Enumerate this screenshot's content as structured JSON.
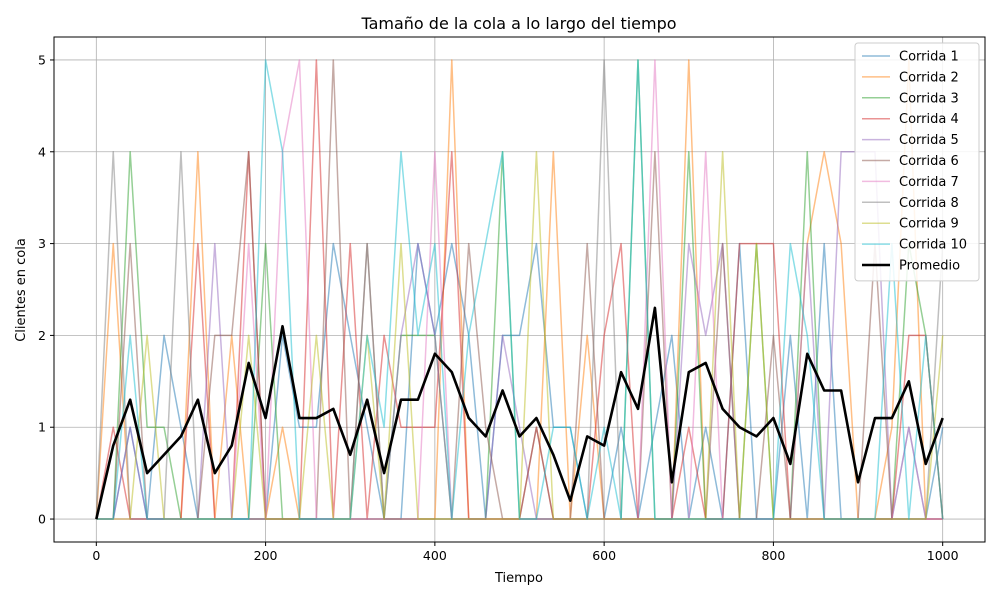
{
  "chart_data": {
    "type": "line",
    "title": "Tamaño de la cola a lo largo del tiempo",
    "xlabel": "Tiempo",
    "ylabel": "Clientes en cola",
    "xlim": [
      -50,
      1050
    ],
    "ylim": [
      -0.25,
      5.25
    ],
    "xticks": [
      0,
      200,
      400,
      600,
      800,
      1000
    ],
    "yticks": [
      0,
      1,
      2,
      3,
      4,
      5
    ],
    "grid": true,
    "legend_position": "top-right",
    "x": [
      0,
      20,
      40,
      60,
      80,
      100,
      120,
      140,
      160,
      180,
      200,
      220,
      240,
      260,
      280,
      300,
      320,
      340,
      360,
      380,
      400,
      420,
      440,
      460,
      480,
      500,
      520,
      540,
      560,
      580,
      600,
      620,
      640,
      660,
      680,
      700,
      720,
      740,
      760,
      780,
      800,
      820,
      840,
      860,
      880,
      900,
      920,
      940,
      960,
      980,
      1000
    ],
    "series": [
      {
        "name": "Corrida 1",
        "color": "#1f77b4",
        "values": [
          0,
          0,
          1,
          0,
          2,
          1,
          0,
          0,
          0,
          0,
          0,
          2,
          1,
          1,
          3,
          2,
          1,
          0,
          0,
          3,
          2,
          3,
          2,
          0,
          2,
          2,
          3,
          1,
          1,
          0,
          0,
          1,
          0,
          1,
          2,
          0,
          1,
          0,
          3,
          0,
          0,
          2,
          0,
          3,
          0,
          0,
          0,
          0,
          1,
          0,
          1
        ]
      },
      {
        "name": "Corrida 2",
        "color": "#ff7f0e",
        "values": [
          0,
          3,
          0,
          0,
          0,
          0,
          4,
          0,
          2,
          0,
          0,
          1,
          0,
          0,
          0,
          0,
          0,
          0,
          0,
          0,
          0,
          5,
          0,
          0,
          0,
          0,
          0,
          4,
          0,
          2,
          0,
          0,
          0,
          0,
          0,
          5,
          0,
          0,
          0,
          0,
          0,
          0,
          3,
          4,
          3,
          0,
          0,
          1,
          5,
          0,
          0
        ]
      },
      {
        "name": "Corrida 3",
        "color": "#2ca02c",
        "values": [
          0,
          0,
          4,
          1,
          1,
          0,
          0,
          0,
          0,
          0,
          3,
          0,
          0,
          0,
          0,
          0,
          0,
          0,
          2,
          2,
          2,
          0,
          0,
          0,
          4,
          0,
          0,
          0,
          0,
          0,
          0,
          0,
          5,
          0,
          0,
          4,
          0,
          0,
          0,
          3,
          0,
          0,
          4,
          0,
          0,
          0,
          0,
          0,
          3,
          2,
          0
        ]
      },
      {
        "name": "Corrida 4",
        "color": "#d62728",
        "values": [
          0,
          1,
          0,
          0,
          0,
          0,
          3,
          0,
          0,
          4,
          0,
          0,
          0,
          5,
          0,
          3,
          0,
          2,
          1,
          1,
          1,
          4,
          0,
          0,
          0,
          0,
          1,
          0,
          0,
          0,
          2,
          3,
          0,
          0,
          0,
          1,
          0,
          0,
          3,
          3,
          3,
          0,
          0,
          0,
          0,
          0,
          0,
          0,
          2,
          2,
          0
        ]
      },
      {
        "name": "Corrida 5",
        "color": "#9467bd",
        "values": [
          0,
          0,
          1,
          0,
          0,
          0,
          0,
          3,
          0,
          0,
          0,
          0,
          0,
          0,
          0,
          0,
          0,
          0,
          2,
          3,
          2,
          0,
          0,
          0,
          2,
          1,
          0,
          0,
          0,
          0,
          0,
          0,
          0,
          0,
          0,
          3,
          2,
          3,
          0,
          0,
          0,
          0,
          3,
          0,
          4,
          4,
          4,
          0,
          0,
          0,
          0
        ]
      },
      {
        "name": "Corrida 6",
        "color": "#8c564b",
        "values": [
          0,
          0,
          3,
          0,
          0,
          0,
          0,
          2,
          2,
          4,
          0,
          0,
          0,
          0,
          5,
          0,
          3,
          0,
          0,
          0,
          0,
          0,
          3,
          1,
          0,
          0,
          1,
          0,
          0,
          3,
          0,
          0,
          0,
          4,
          0,
          0,
          0,
          3,
          0,
          0,
          2,
          0,
          0,
          0,
          0,
          0,
          3,
          0,
          0,
          0,
          0
        ]
      },
      {
        "name": "Corrida 7",
        "color": "#e377c2",
        "values": [
          0,
          0,
          0,
          0,
          0,
          0,
          0,
          0,
          0,
          3,
          0,
          4,
          5,
          0,
          0,
          0,
          0,
          0,
          0,
          0,
          4,
          0,
          0,
          0,
          0,
          0,
          0,
          0,
          0,
          0,
          0,
          0,
          0,
          5,
          0,
          0,
          4,
          0,
          0,
          0,
          0,
          0,
          0,
          0,
          0,
          0,
          0,
          0,
          1,
          0,
          0
        ]
      },
      {
        "name": "Corrida 8",
        "color": "#7f7f7f",
        "values": [
          0,
          4,
          0,
          0,
          0,
          4,
          0,
          0,
          0,
          0,
          0,
          0,
          0,
          0,
          0,
          0,
          3,
          0,
          0,
          0,
          0,
          0,
          0,
          0,
          0,
          0,
          0,
          0,
          0,
          0,
          5,
          0,
          0,
          0,
          0,
          0,
          0,
          0,
          0,
          0,
          0,
          0,
          0,
          0,
          0,
          0,
          0,
          0,
          0,
          0,
          3
        ]
      },
      {
        "name": "Corrida 9",
        "color": "#bcbd22",
        "values": [
          0,
          0,
          0,
          2,
          0,
          0,
          0,
          0,
          0,
          2,
          0,
          0,
          0,
          2,
          0,
          0,
          2,
          0,
          3,
          0,
          0,
          0,
          0,
          0,
          0,
          0,
          4,
          0,
          0,
          0,
          0,
          0,
          0,
          0,
          0,
          0,
          0,
          4,
          0,
          3,
          0,
          0,
          0,
          0,
          0,
          0,
          0,
          0,
          0,
          0,
          2
        ]
      },
      {
        "name": "Corrida 10",
        "color": "#17becf",
        "values": [
          0,
          0,
          2,
          0,
          0,
          0,
          0,
          0,
          0,
          0,
          5,
          4,
          0,
          0,
          0,
          0,
          2,
          1,
          4,
          2,
          3,
          0,
          2,
          3,
          4,
          0,
          0,
          1,
          1,
          0,
          1,
          0,
          5,
          0,
          0,
          0,
          0,
          0,
          0,
          0,
          0,
          3,
          2,
          0,
          0,
          0,
          0,
          3,
          0,
          2,
          0
        ]
      },
      {
        "name": "Promedio",
        "color": "#000000",
        "values": [
          0,
          0.8,
          1.3,
          0.5,
          0.7,
          0.9,
          1.3,
          0.5,
          0.8,
          1.7,
          1.1,
          2.1,
          1.1,
          1.1,
          1.2,
          0.7,
          1.3,
          0.5,
          1.3,
          1.3,
          1.8,
          1.6,
          1.1,
          0.9,
          1.4,
          0.9,
          1.1,
          0.7,
          0.2,
          0.9,
          0.8,
          1.6,
          1.2,
          2.3,
          0.4,
          1.6,
          1.7,
          1.2,
          1.0,
          0.9,
          1.1,
          0.6,
          1.8,
          1.4,
          1.4,
          0.4,
          1.1,
          1.1,
          1.5,
          0.6,
          1.1
        ]
      }
    ]
  }
}
